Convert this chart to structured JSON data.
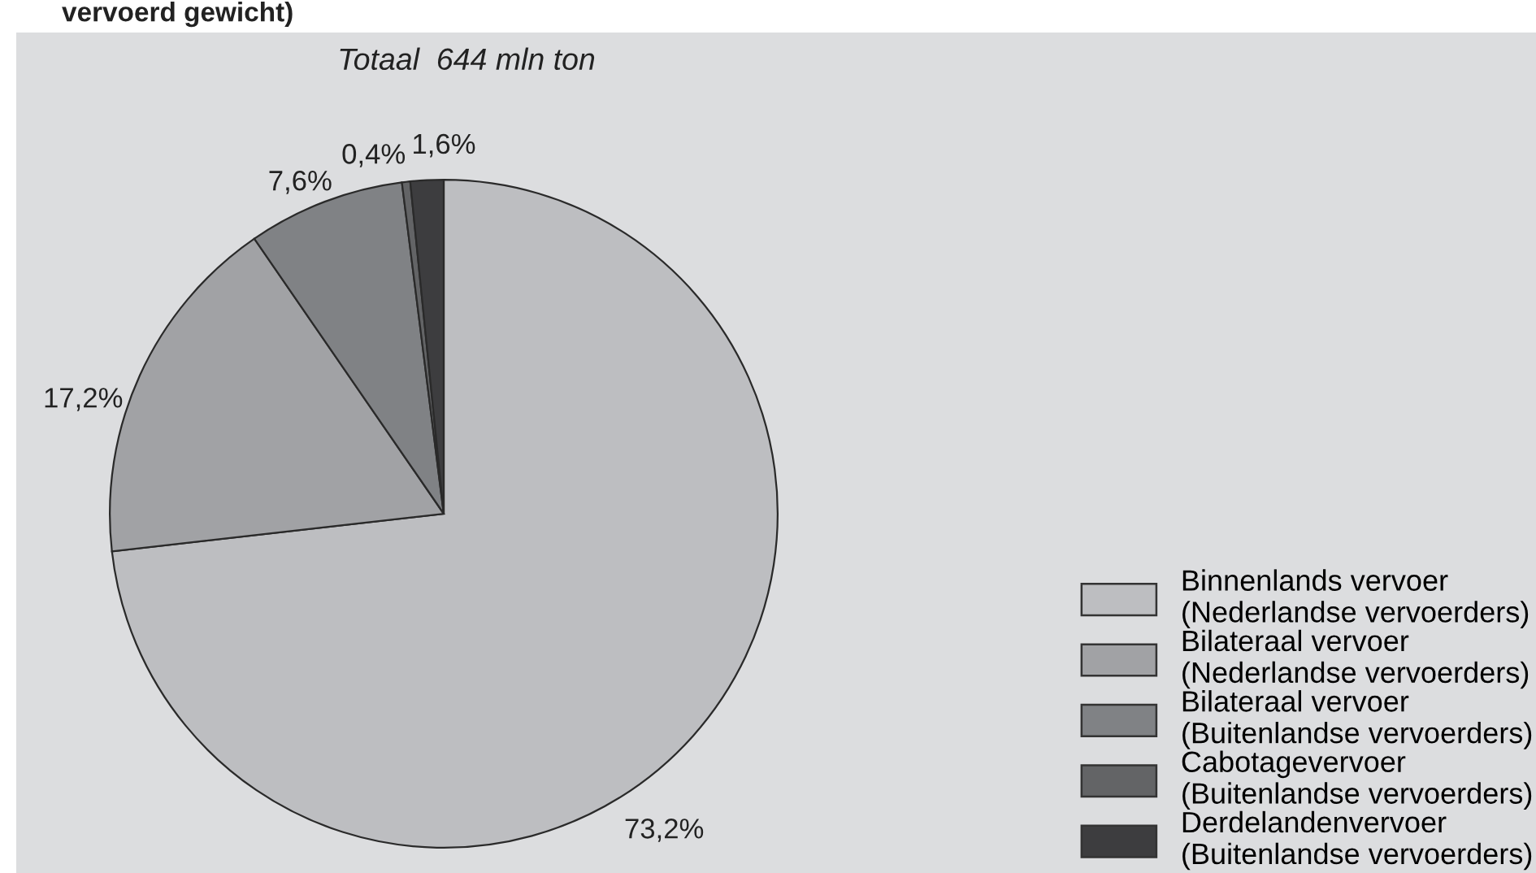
{
  "chart_data": {
    "type": "pie",
    "title": "vervoerd gewicht)",
    "annotations": [
      "Totaal  644 mln ton"
    ],
    "categories": [
      "Binnenlands vervoer\n(Nederlandse vervoerders)",
      "Bilateraal vervoer\n(Nederlandse vervoerders)",
      "Bilateraal vervoer\n(Buitenlandse vervoerders)",
      "Cabotagevervoer\n(Buitenlandse vervoerders)",
      "Derdelandenvervoer\n(Buitenlandse vervoerders)"
    ],
    "values": [
      73.2,
      17.2,
      7.6,
      0.4,
      1.6
    ],
    "value_labels": [
      "73,2%",
      "17,2%",
      "7,6%",
      "0,4%",
      "1,6%"
    ],
    "colors": [
      "#bdbec1",
      "#a1a2a5",
      "#808285",
      "#636466",
      "#3d3d3f"
    ],
    "legend": "bottom right"
  }
}
